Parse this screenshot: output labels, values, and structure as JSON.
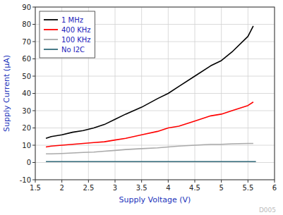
{
  "chart_data": {
    "type": "line",
    "xlabel": "Supply Voltage (V)",
    "ylabel": "Supply Current (μA)",
    "xlim": [
      1.5,
      6.0
    ],
    "ylim": [
      -10,
      90
    ],
    "xticks": [
      1.5,
      2,
      2.5,
      3,
      3.5,
      4,
      4.5,
      5,
      5.5,
      6
    ],
    "yticks": [
      -10,
      0,
      10,
      20,
      30,
      40,
      50,
      60,
      70,
      80,
      90
    ],
    "grid": true,
    "legend": "upper left",
    "annotations": [
      "D005"
    ],
    "series": [
      {
        "name": "1 MHz",
        "color": "#000000",
        "x": [
          1.7,
          1.8,
          2.0,
          2.2,
          2.4,
          2.6,
          2.8,
          3.0,
          3.2,
          3.5,
          3.8,
          4.0,
          4.2,
          4.5,
          4.8,
          5.0,
          5.2,
          5.5,
          5.6
        ],
        "values": [
          14,
          15,
          16,
          17.5,
          18.5,
          20,
          22,
          25,
          28,
          32,
          37,
          40,
          44,
          50,
          56,
          59,
          64,
          73,
          79
        ]
      },
      {
        "name": "400 KHz",
        "color": "#ff0000",
        "x": [
          1.7,
          1.8,
          2.0,
          2.2,
          2.4,
          2.6,
          2.8,
          3.0,
          3.2,
          3.5,
          3.8,
          4.0,
          4.2,
          4.5,
          4.8,
          5.0,
          5.2,
          5.5,
          5.6
        ],
        "values": [
          9,
          9.5,
          10,
          10.5,
          11,
          11.5,
          12,
          13,
          14,
          16,
          18,
          20,
          21,
          24,
          27,
          28,
          30,
          33,
          35
        ]
      },
      {
        "name": "100 KHz",
        "color": "#aaaaaa",
        "x": [
          1.7,
          1.8,
          2.0,
          2.2,
          2.4,
          2.6,
          2.8,
          3.0,
          3.2,
          3.5,
          3.8,
          4.0,
          4.2,
          4.5,
          4.8,
          5.0,
          5.2,
          5.5,
          5.6
        ],
        "values": [
          5,
          5,
          5.2,
          5.5,
          5.8,
          6.0,
          6.5,
          7.0,
          7.5,
          8.0,
          8.5,
          9.0,
          9.5,
          10.0,
          10.5,
          10.5,
          10.8,
          11,
          11
        ]
      },
      {
        "name": "No I2C",
        "color": "#336b7a",
        "x": [
          1.7,
          2.0,
          2.5,
          3.0,
          3.5,
          4.0,
          4.5,
          5.0,
          5.5,
          5.65
        ],
        "values": [
          0.5,
          0.5,
          0.5,
          0.5,
          0.5,
          0.5,
          0.5,
          0.5,
          0.5,
          0.5
        ]
      }
    ]
  }
}
